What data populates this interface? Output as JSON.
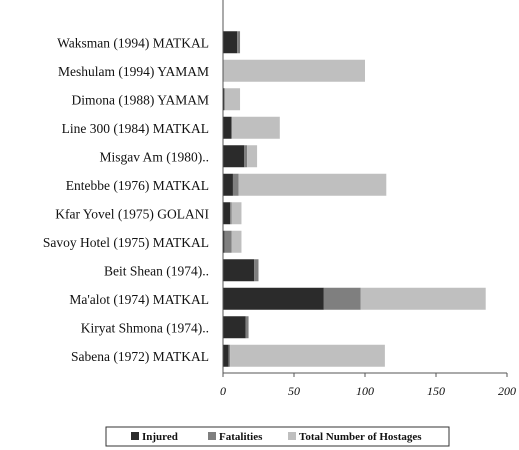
{
  "chart_data": {
    "type": "bar",
    "orientation": "horizontal",
    "stacked": true,
    "categories": [
      "Waksman (1994) MATKAL",
      "Meshulam (1994) YAMAM",
      "Dimona (1988) YAMAM",
      "Line 300 (1984) MATKAL",
      "Misgav Am (1980)..",
      "Entebbe (1976) MATKAL",
      "Kfar Yovel (1975) GOLANI",
      "Savoy Hotel (1975) MATKAL",
      "Beit Shean (1974)..",
      "Ma'alot (1974) MATKAL",
      "Kiryat Shmona (1974)..",
      "Sabena (1972) MATKAL"
    ],
    "series": [
      {
        "name": "Injured",
        "color": "#2b2b2b",
        "values": [
          10,
          0,
          1,
          6,
          15,
          7,
          5,
          1,
          22,
          71,
          16,
          4
        ]
      },
      {
        "name": "Fatalities",
        "color": "#7f7f7f",
        "values": [
          2,
          0,
          0,
          0,
          2,
          4,
          1,
          5,
          3,
          26,
          2,
          1
        ]
      },
      {
        "name": "Total Number of Hostages",
        "color": "#bfbfbf",
        "values": [
          0,
          100,
          11,
          34,
          7,
          104,
          7,
          7,
          0,
          88,
          0,
          109
        ]
      }
    ],
    "x_ticks": [
      "0",
      "50",
      "100",
      "150",
      "200"
    ],
    "xlim": [
      0,
      200
    ],
    "grid": false,
    "legend_position": "bottom"
  }
}
